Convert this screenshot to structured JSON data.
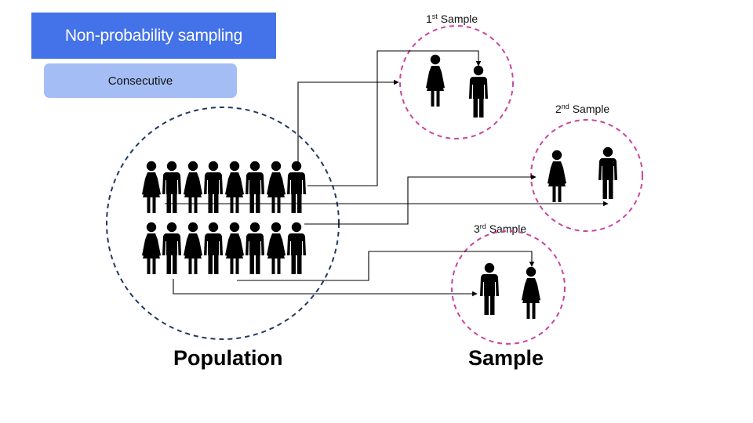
{
  "title": "Non-probability sampling",
  "method": "Consecutive",
  "samples": [
    {
      "num": "1",
      "sup": "st",
      "word": "Sample"
    },
    {
      "num": "2",
      "sup": "nd",
      "word": "Sample"
    },
    {
      "num": "3",
      "sup": "rd",
      "word": "Sample"
    }
  ],
  "population_label": "Population",
  "sample_label": "Sample",
  "colors": {
    "title_bg": "#4472e8",
    "method_bg": "#a4bdf4",
    "population_circle": "#1f3864",
    "sample_circle": "#c9449e",
    "figure": "#000000"
  },
  "icons": [
    "female-figure-icon",
    "male-figure-icon"
  ]
}
